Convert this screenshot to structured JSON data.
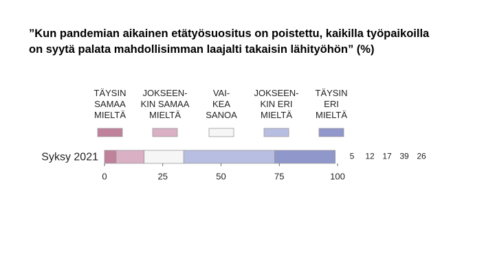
{
  "chart_data": {
    "type": "stacked-bar",
    "orientation": "horizontal",
    "title": "”Kun pandemian aikainen etätyösuositus on poistettu, kaikilla työpaikoilla\non syytä palata mahdollisimman laajalti takaisin lähityöhön” (%)",
    "categories": [
      "Syksy 2021"
    ],
    "series": [
      {
        "name": "TÄYSIN\nSAMAA\nMIELTÄ",
        "color": "#c0819b",
        "values": [
          5
        ]
      },
      {
        "name": "JOKSEEN-\nKIN SAMAA\nMIELTÄ",
        "color": "#d9b0c4",
        "values": [
          12
        ]
      },
      {
        "name": "VAI-\nKEA\nSANOA",
        "color": "#f5f6f5",
        "values": [
          17
        ]
      },
      {
        "name": "JOKSEEN-\nKIN ERI\nMIELTÄ",
        "color": "#b8bee1",
        "values": [
          39
        ]
      },
      {
        "name": "TÄYSIN\nERI\nMIELTÄ",
        "color": "#8f97cb",
        "values": [
          26
        ]
      }
    ],
    "xlim": [
      0,
      100
    ],
    "xticks": [
      0,
      25,
      50,
      75,
      100
    ]
  }
}
